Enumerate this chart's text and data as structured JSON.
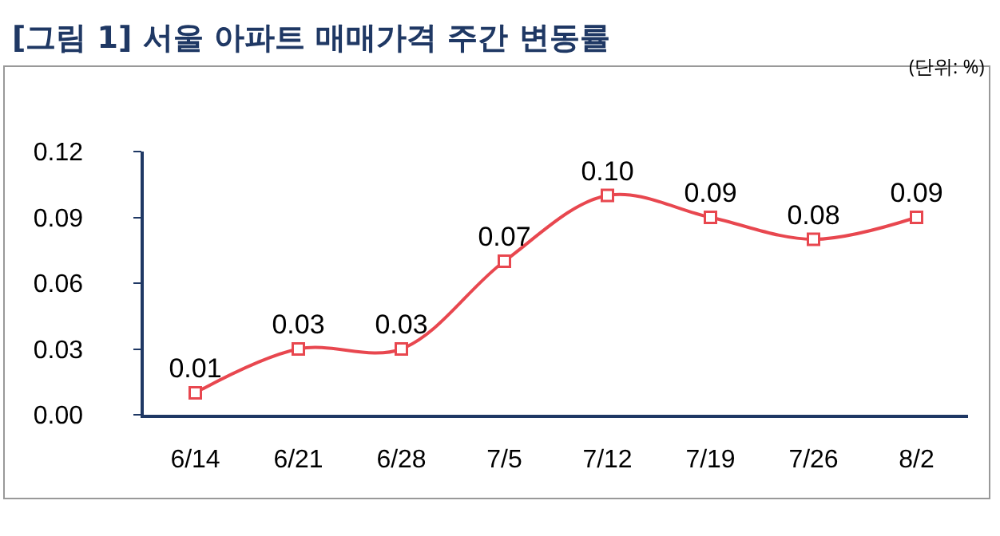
{
  "chart_data": {
    "type": "line",
    "title": "[그림 1] 서울 아파트 매매가격 주간 변동률",
    "annotations": [
      "(단위: %)"
    ],
    "categories": [
      "6/14",
      "6/21",
      "6/28",
      "7/5",
      "7/12",
      "7/19",
      "7/26",
      "8/2"
    ],
    "series": [
      {
        "color": "#e8474f",
        "values": [
          0.01,
          0.03,
          0.03,
          0.07,
          0.1,
          0.09,
          0.08,
          0.09
        ]
      }
    ],
    "value_labels": [
      "0.01",
      "0.03",
      "0.03",
      "0.07",
      "0.10",
      "0.09",
      "0.08",
      "0.09"
    ],
    "ylim": [
      0,
      0.12
    ],
    "yticks": [
      {
        "value": 0,
        "label": "0.00"
      },
      {
        "value": 0.03,
        "label": "0.03"
      },
      {
        "value": 0.06,
        "label": "0.06"
      },
      {
        "value": 0.09,
        "label": "0.09"
      },
      {
        "value": 0.12,
        "label": "0.12"
      }
    ],
    "grid": false,
    "marker": "square",
    "line_style": "solid"
  }
}
